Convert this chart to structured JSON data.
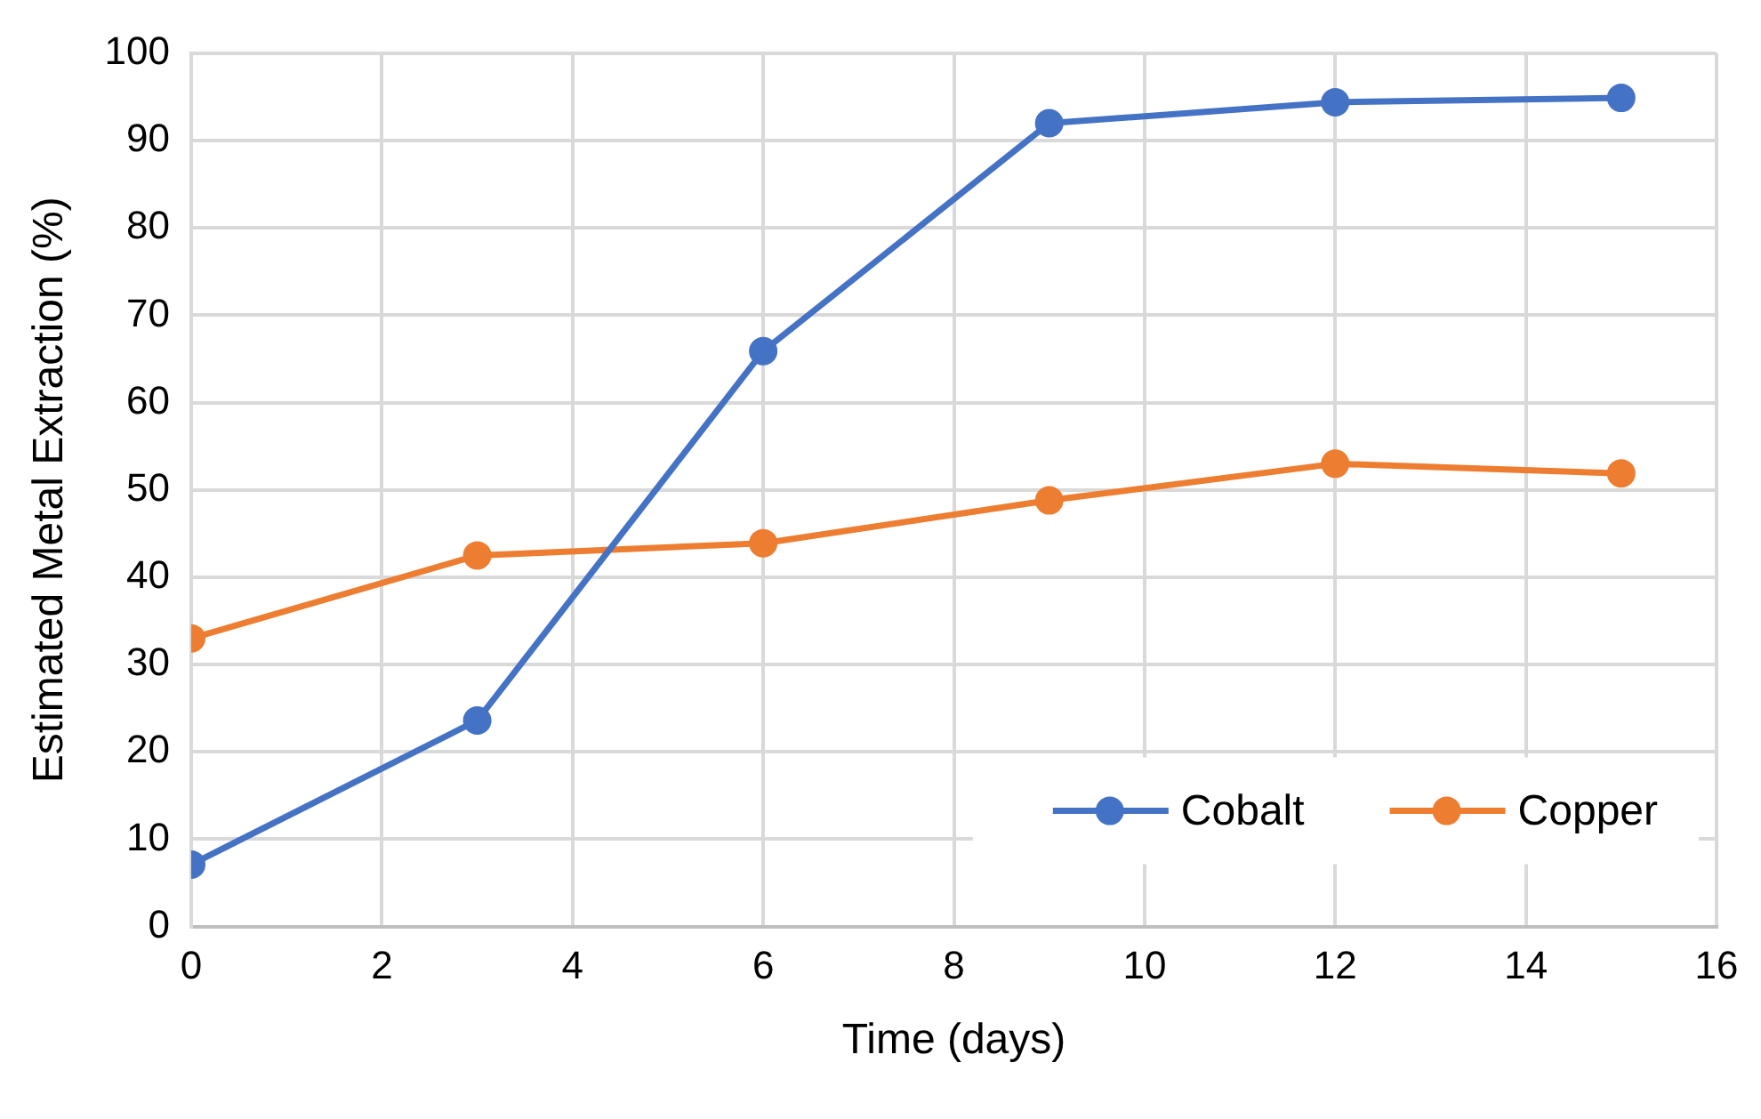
{
  "chart_data": {
    "type": "line",
    "xlabel": "Time (days)",
    "ylabel": "Estimated Metal Extraction (%)",
    "x": [
      0,
      3,
      6,
      9,
      12,
      15
    ],
    "series": [
      {
        "name": "Cobalt",
        "color": "#4472c4",
        "values": [
          7.1,
          23.6,
          65.9,
          92,
          94.4,
          94.9
        ]
      },
      {
        "name": "Copper",
        "color": "#ed7d31",
        "values": [
          33,
          42.5,
          43.9,
          48.8,
          53,
          51.9
        ]
      }
    ],
    "xlim": [
      0,
      16
    ],
    "xticks": [
      0,
      2,
      4,
      6,
      8,
      10,
      12,
      14,
      16
    ],
    "ylim": [
      0,
      100
    ],
    "yticks": [
      0,
      10,
      20,
      30,
      40,
      50,
      60,
      70,
      80,
      90,
      100
    ],
    "grid": true,
    "legend": "bottom right",
    "marker": "circle",
    "line_style": "solid"
  }
}
